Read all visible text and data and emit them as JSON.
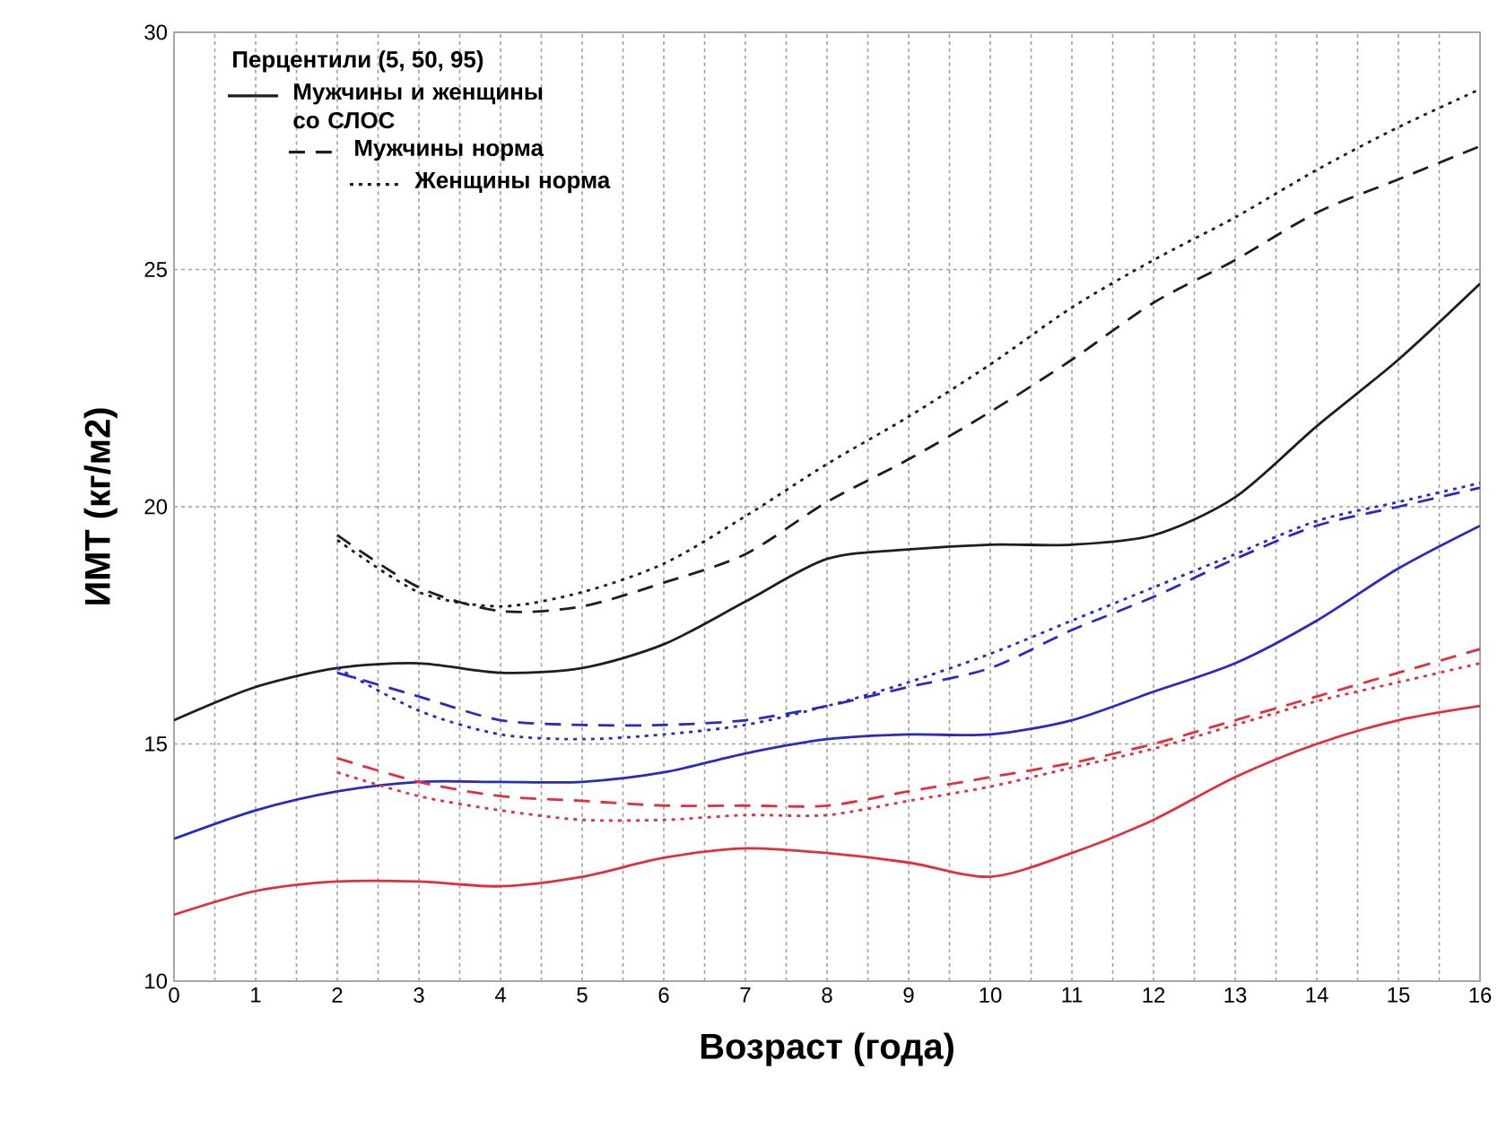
{
  "chart_data": {
    "type": "line",
    "xlabel": "Возраст (года)",
    "ylabel": "ИМТ (кг/м2)",
    "legend_title": "Перцентили (5, 50, 95)",
    "x": [
      0,
      1,
      2,
      3,
      4,
      5,
      6,
      7,
      8,
      9,
      10,
      11,
      12,
      13,
      14,
      15,
      16
    ],
    "xlim": [
      0,
      16
    ],
    "ylim": [
      10,
      30
    ],
    "xticks": [
      0,
      1,
      2,
      3,
      4,
      5,
      6,
      7,
      8,
      9,
      10,
      11,
      12,
      13,
      14,
      15,
      16
    ],
    "yticks": [
      10,
      15,
      20,
      25,
      30
    ],
    "grid": true,
    "legend": "top left",
    "series": [
      {
        "name": "Мужчины и женщины со СЛОС",
        "color": "#1e1e1e",
        "line_style": "solid",
        "values": [
          15.5,
          16.2,
          16.6,
          16.7,
          16.5,
          16.6,
          17.1,
          18.0,
          18.9,
          19.1,
          19.2,
          19.2,
          19.4,
          20.2,
          21.7,
          23.1,
          24.7
        ]
      },
      {
        "name": "Мужчины норма",
        "color": "#1e1e1e",
        "line_style": "dashed",
        "values": [
          null,
          null,
          19.4,
          18.3,
          17.8,
          17.9,
          18.4,
          19.0,
          20.1,
          21.0,
          22.0,
          23.1,
          24.3,
          25.2,
          26.2,
          26.9,
          27.6
        ]
      },
      {
        "name": "Женщины норма",
        "color": "#1e1e1e",
        "line_style": "dotted",
        "values": [
          null,
          null,
          19.3,
          18.2,
          17.9,
          18.2,
          18.8,
          19.8,
          20.9,
          21.9,
          23.0,
          24.2,
          25.2,
          26.1,
          27.1,
          28.0,
          28.8
        ]
      },
      {
        "color": "#2a2ac0",
        "line_style": "solid",
        "values": [
          13.0,
          13.6,
          14.0,
          14.2,
          14.2,
          14.2,
          14.4,
          14.8,
          15.1,
          15.2,
          15.2,
          15.5,
          16.1,
          16.7,
          17.6,
          18.7,
          19.6
        ]
      },
      {
        "color": "#2a2ac0",
        "line_style": "dashed",
        "values": [
          null,
          null,
          16.5,
          16.0,
          15.5,
          15.4,
          15.4,
          15.5,
          15.8,
          16.2,
          16.6,
          17.4,
          18.1,
          18.9,
          19.6,
          20.0,
          20.4
        ]
      },
      {
        "color": "#2a2ac0",
        "line_style": "dotted",
        "values": [
          null,
          null,
          16.6,
          15.7,
          15.2,
          15.1,
          15.2,
          15.4,
          15.8,
          16.3,
          16.9,
          17.6,
          18.3,
          19.0,
          19.7,
          20.1,
          20.5
        ]
      },
      {
        "color": "#e0303c",
        "line_style": "solid",
        "values": [
          11.4,
          11.9,
          12.1,
          12.1,
          12.0,
          12.2,
          12.6,
          12.8,
          12.7,
          12.5,
          12.2,
          12.7,
          13.4,
          14.3,
          15.0,
          15.5,
          15.8
        ]
      },
      {
        "color": "#e0303c",
        "line_style": "dashed",
        "values": [
          null,
          null,
          14.7,
          14.2,
          13.9,
          13.8,
          13.7,
          13.7,
          13.7,
          14.0,
          14.3,
          14.6,
          15.0,
          15.5,
          16.0,
          16.5,
          17.0
        ]
      },
      {
        "color": "#e0303c",
        "line_style": "dotted",
        "values": [
          null,
          null,
          14.4,
          13.9,
          13.6,
          13.4,
          13.4,
          13.5,
          13.5,
          13.8,
          14.1,
          14.5,
          14.9,
          15.4,
          15.9,
          16.3,
          16.7
        ]
      }
    ]
  }
}
